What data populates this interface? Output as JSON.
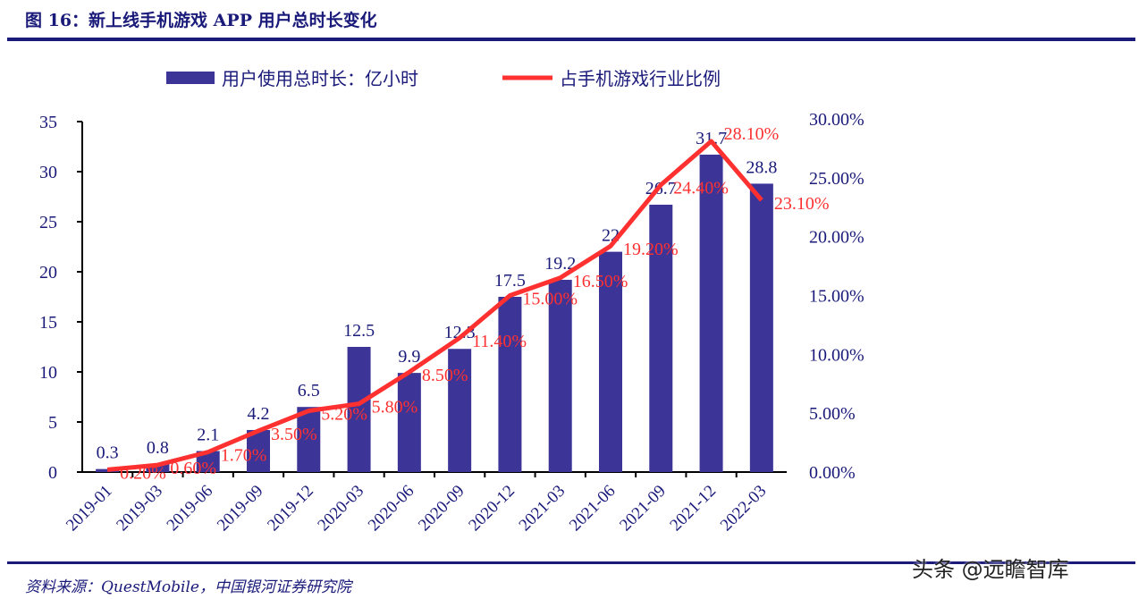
{
  "title": "图 16：新上线手机游戏 APP 用户总时长变化",
  "source": "资料来源：QuestMobile，中国银河证券研究院",
  "watermark": "头条 @远瞻智库",
  "chart_data": {
    "type": "bar+line",
    "categories": [
      "2019-01",
      "2019-03",
      "2019-06",
      "2019-09",
      "2019-12",
      "2020-03",
      "2020-06",
      "2020-09",
      "2020-12",
      "2021-03",
      "2021-06",
      "2021-09",
      "2021-12",
      "2022-03"
    ],
    "series": [
      {
        "name": "用户使用总时长：亿小时",
        "type": "bar",
        "axis": "left",
        "color": "#3d3497",
        "values": [
          0.3,
          0.8,
          2.1,
          4.2,
          6.5,
          12.5,
          9.9,
          12.3,
          17.5,
          19.2,
          22,
          26.7,
          31.7,
          28.8
        ],
        "labels": [
          "0.3",
          "0.8",
          "2.1",
          "4.2",
          "6.5",
          "12.5",
          "9.9",
          "12.3",
          "17.5",
          "19.2",
          "22",
          "26.7",
          "31.7",
          "28.8"
        ]
      },
      {
        "name": "占手机游戏行业比例",
        "type": "line",
        "axis": "right",
        "color": "#ff3030",
        "values": [
          0.2,
          0.6,
          1.7,
          3.5,
          5.2,
          5.8,
          8.5,
          11.4,
          15.0,
          16.5,
          19.2,
          24.4,
          28.1,
          23.1
        ],
        "labels": [
          "0.20%",
          "0.60%",
          "1.70%",
          "3.50%",
          "5.20%",
          "5.80%",
          "8.50%",
          "11.40%",
          "15.00%",
          "16.50%",
          "19.20%",
          "24.40%",
          "28.10%",
          "23.10%"
        ]
      }
    ],
    "left_axis": {
      "range": [
        0,
        35
      ],
      "ticks": [
        "0",
        "5",
        "10",
        "15",
        "20",
        "25",
        "30",
        "35"
      ]
    },
    "right_axis": {
      "range": [
        0,
        30
      ],
      "unit": "%",
      "ticks": [
        "0.00%",
        "5.00%",
        "10.00%",
        "15.00%",
        "20.00%",
        "25.00%",
        "30.00%"
      ]
    },
    "legend_placement": "top",
    "grid": false
  }
}
